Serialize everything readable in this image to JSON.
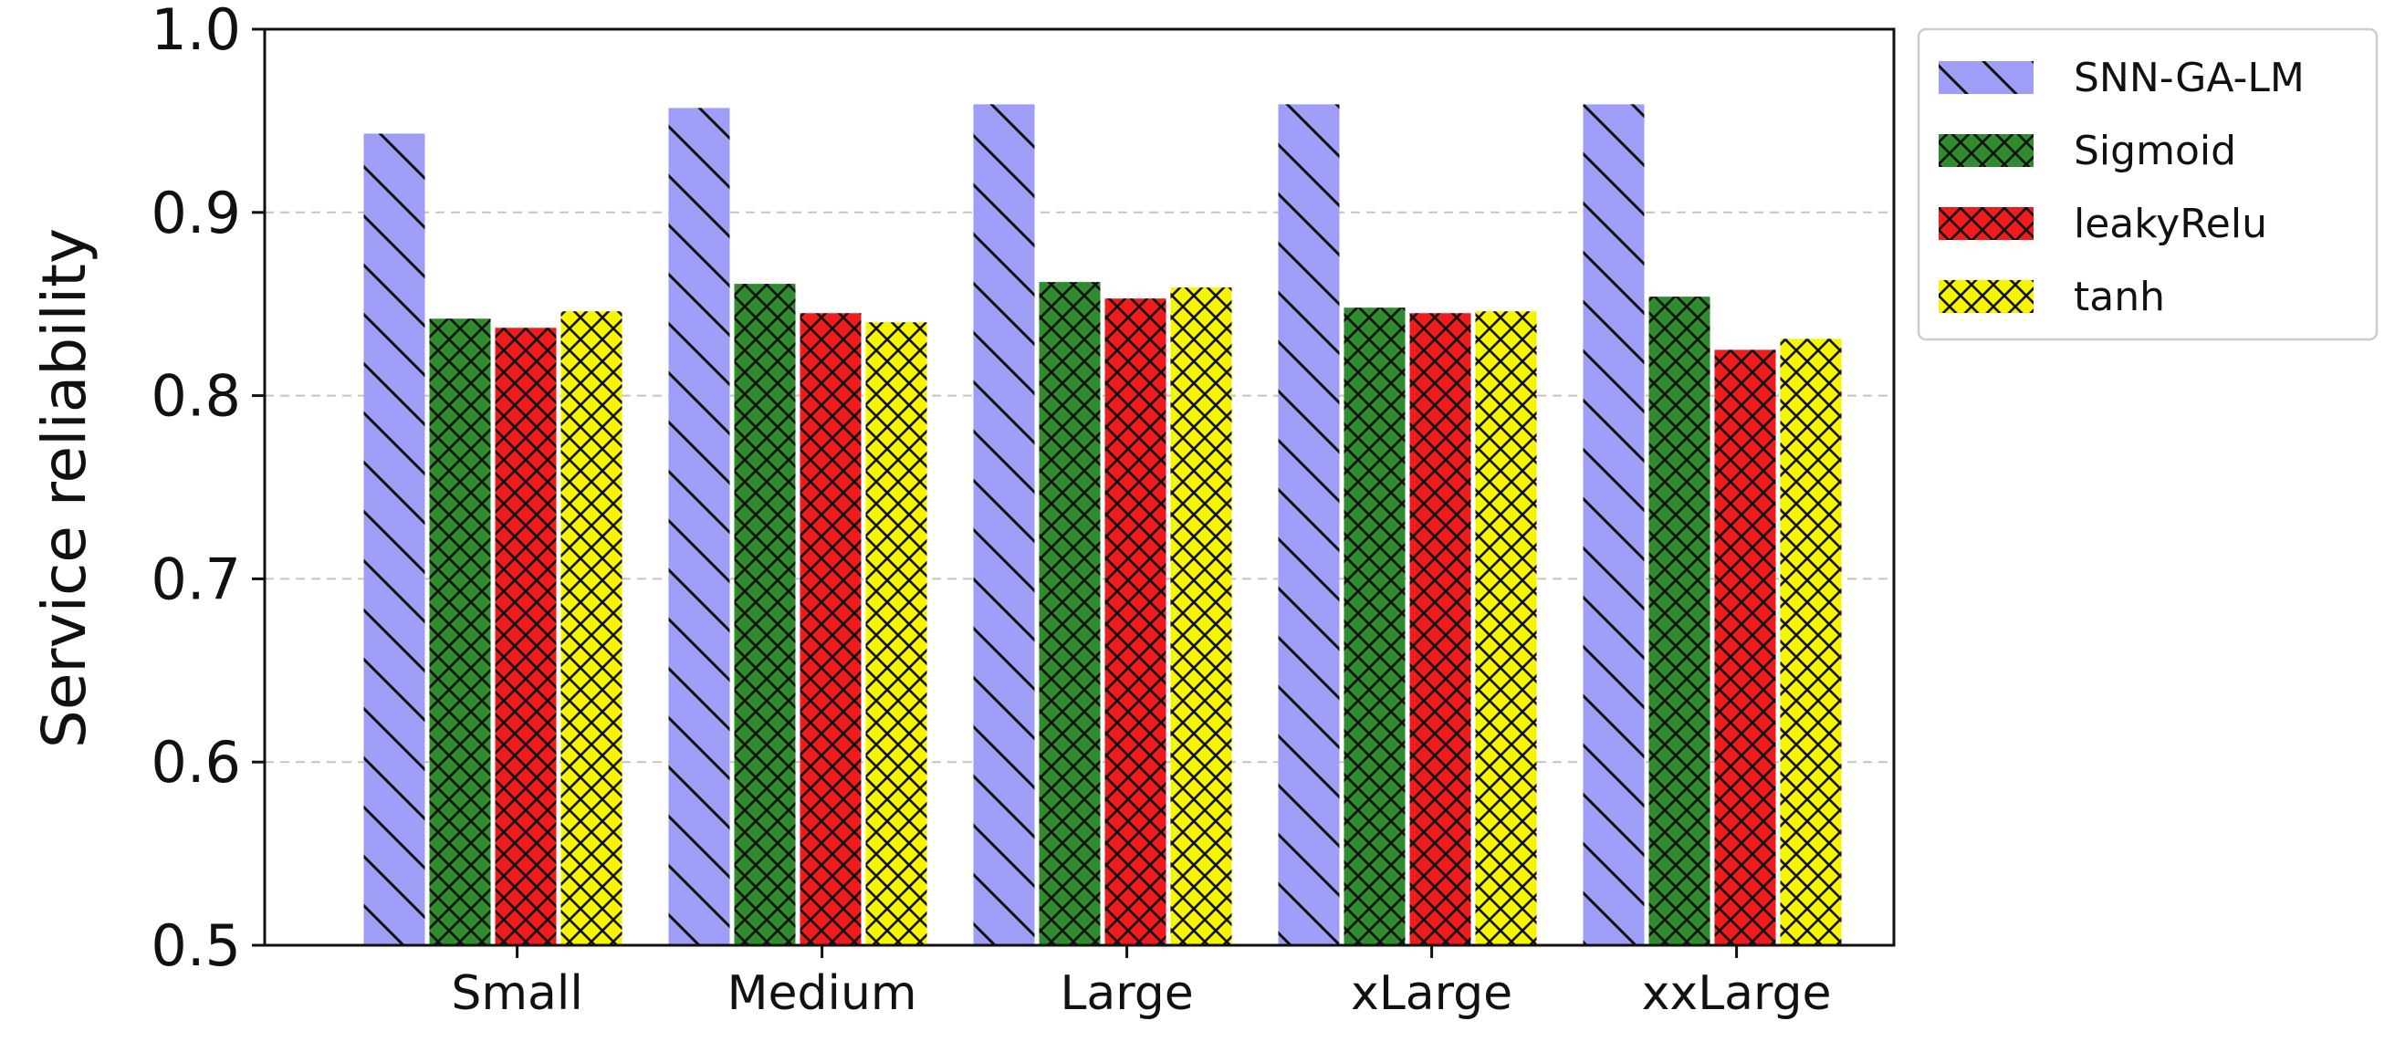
{
  "chart_data": {
    "type": "bar",
    "ylabel": "Service reliability",
    "xlabel": "",
    "ylim": [
      0.5,
      1.0
    ],
    "yticks": [
      "0.5",
      "0.6",
      "0.7",
      "0.8",
      "0.9",
      "1.0"
    ],
    "categories": [
      "Small",
      "Medium",
      "Large",
      "xLarge",
      "xxLarge"
    ],
    "grid": "horizontal dashed",
    "legend_position": "outside-top-right",
    "series": [
      {
        "name": "SNN-GA-LM",
        "color": "#9e9ef7",
        "hatch": "diagonal",
        "values": [
          0.943,
          0.957,
          0.959,
          0.959,
          0.959
        ]
      },
      {
        "name": "Sigmoid",
        "color": "#2e8b2e",
        "hatch": "crosshatch",
        "values": [
          0.842,
          0.861,
          0.862,
          0.848,
          0.854
        ]
      },
      {
        "name": "leakyRelu",
        "color": "#ee1c1c",
        "hatch": "crosshatch",
        "values": [
          0.837,
          0.845,
          0.853,
          0.845,
          0.825
        ]
      },
      {
        "name": "tanh",
        "color": "#f5f500",
        "hatch": "crosshatch",
        "values": [
          0.846,
          0.84,
          0.859,
          0.846,
          0.831
        ]
      }
    ]
  }
}
